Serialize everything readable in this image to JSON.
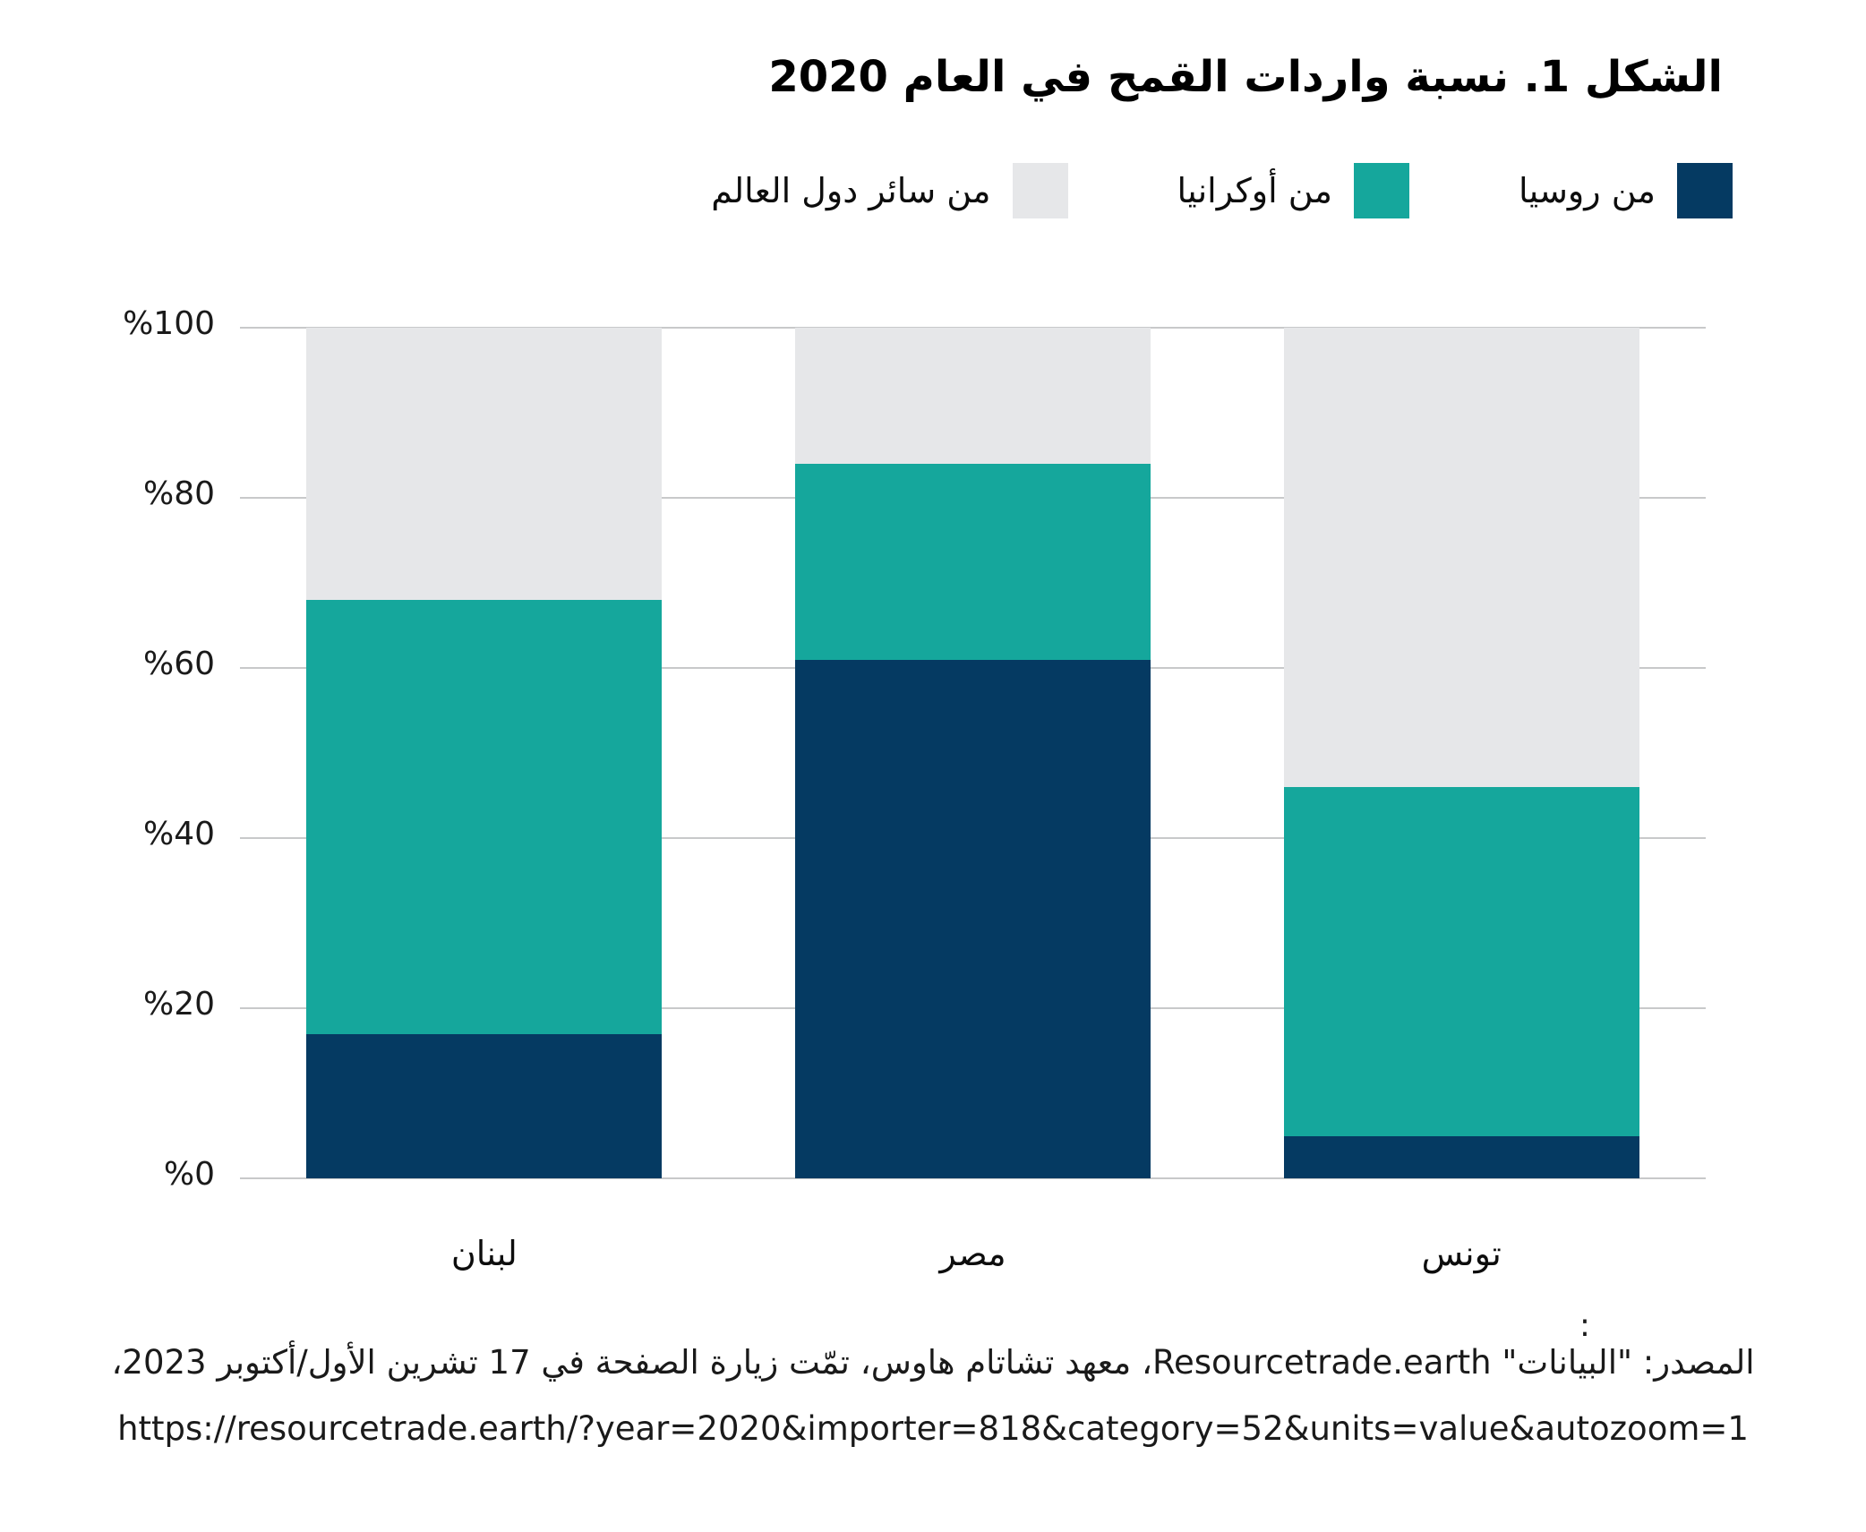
{
  "title": "الشكل 1. نسبة واردات القمح في العام 2020",
  "legend": {
    "items": [
      {
        "label": "من روسيا",
        "color": "#053a62"
      },
      {
        "label": "من أوكرانيا",
        "color": "#15a79c"
      },
      {
        "label": "من سائر دول العالم",
        "color": "#e6e7e9"
      }
    ]
  },
  "chart_data": {
    "type": "bar",
    "stacked": true,
    "title": "الشكل 1. نسبة واردات القمح في العام 2020",
    "categories": [
      "لبنان",
      "مصر",
      "تونس"
    ],
    "series": [
      {
        "name": "من روسيا",
        "color": "#053a62",
        "values": [
          17,
          61,
          5
        ]
      },
      {
        "name": "من أوكرانيا",
        "color": "#15a79c",
        "values": [
          51,
          23,
          41
        ]
      },
      {
        "name": "من سائر دول العالم",
        "color": "#e6e7e9",
        "values": [
          32,
          16,
          54
        ]
      }
    ],
    "ylim": [
      0,
      100
    ],
    "y_ticks": [
      0,
      20,
      40,
      60,
      80,
      100
    ],
    "y_tick_labels": [
      "%0",
      "%20",
      "%40",
      "%60",
      "%80",
      "%100"
    ],
    "grid": true,
    "legend_position": "top",
    "xlabel": "",
    "ylabel": ""
  },
  "footer": {
    "colon": ":",
    "source": "المصدر: \"البيانات\" Resourcetrade.earth، معهد تشاتام هاوس، تمّت زيارة الصفحة في 17 تشرين الأول/أكتوبر 2023،",
    "url": "https://resourcetrade.earth/?year=2020&importer=818&category=52&units=value&autozoom=1"
  },
  "colors": {
    "russia": "#053a62",
    "ukraine": "#15a79c",
    "rest_of_world": "#e6e7e9",
    "gridline": "#c8c9ca",
    "text": "#1a1a1a"
  }
}
